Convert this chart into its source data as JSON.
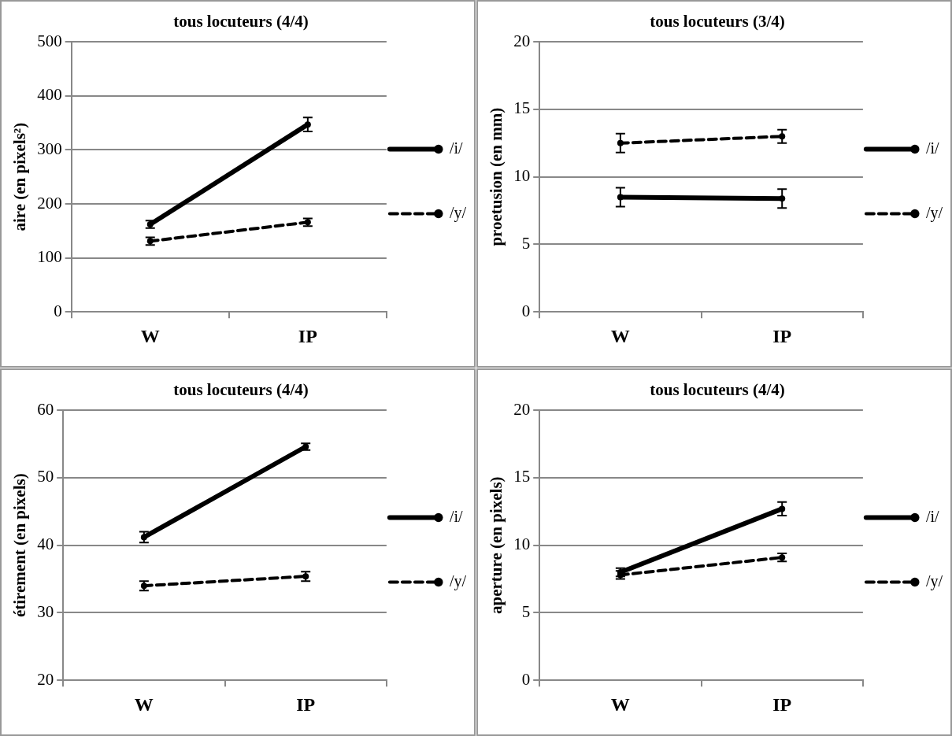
{
  "chart_data": [
    {
      "type": "line",
      "title": "tous locuteurs (4/4)",
      "ylabel": "aire (en pixels²)",
      "categories": [
        "W",
        "IP"
      ],
      "ylim": [
        0,
        500
      ],
      "yticks": [
        0,
        100,
        200,
        300,
        400,
        500
      ],
      "grid": "y",
      "legend": "right",
      "marker": "circle",
      "series": [
        {
          "name": "/i/",
          "color": "#000000",
          "line_style": "solid",
          "values": [
            162,
            347
          ],
          "errors": [
            7,
            13
          ]
        },
        {
          "name": "/y/",
          "color": "#000000",
          "line_style": "dashed",
          "values": [
            131,
            166
          ],
          "errors": [
            7,
            7
          ]
        }
      ]
    },
    {
      "type": "line",
      "title": "tous locuteurs (3/4)",
      "ylabel": "proetusion (en mm)",
      "categories": [
        "W",
        "IP"
      ],
      "ylim": [
        0,
        20
      ],
      "yticks": [
        0,
        5,
        10,
        15,
        20
      ],
      "grid": "y",
      "legend": "right",
      "marker": "circle",
      "series": [
        {
          "name": "/i/",
          "color": "#000000",
          "line_style": "solid",
          "values": [
            8.5,
            8.4
          ],
          "errors": [
            0.7,
            0.7
          ]
        },
        {
          "name": "/y/",
          "color": "#000000",
          "line_style": "dashed",
          "values": [
            12.5,
            13.0
          ],
          "errors": [
            0.7,
            0.5
          ]
        }
      ]
    },
    {
      "type": "line",
      "title": "tous locuteurs (4/4)",
      "ylabel": "étirement (en pixels)",
      "categories": [
        "W",
        "IP"
      ],
      "ylim": [
        20,
        60
      ],
      "yticks": [
        20,
        30,
        40,
        50,
        60
      ],
      "grid": "y",
      "legend": "right",
      "marker": "circle",
      "series": [
        {
          "name": "/i/",
          "color": "#000000",
          "line_style": "solid",
          "values": [
            41.2,
            54.6
          ],
          "errors": [
            0.8,
            0.5
          ]
        },
        {
          "name": "/y/",
          "color": "#000000",
          "line_style": "dashed",
          "values": [
            34.0,
            35.4
          ],
          "errors": [
            0.7,
            0.7
          ]
        }
      ]
    },
    {
      "type": "line",
      "title": "tous locuteurs (4/4)",
      "ylabel": "aperture (en pixels)",
      "categories": [
        "W",
        "IP"
      ],
      "ylim": [
        0,
        20
      ],
      "yticks": [
        0,
        5,
        10,
        15,
        20
      ],
      "grid": "y",
      "legend": "right",
      "marker": "circle",
      "series": [
        {
          "name": "/i/",
          "color": "#000000",
          "line_style": "solid",
          "values": [
            8.0,
            12.7
          ],
          "errors": [
            0.3,
            0.5
          ]
        },
        {
          "name": "/y/",
          "color": "#000000",
          "line_style": "dashed",
          "values": [
            7.8,
            9.1
          ],
          "errors": [
            0.3,
            0.3
          ]
        }
      ]
    }
  ]
}
